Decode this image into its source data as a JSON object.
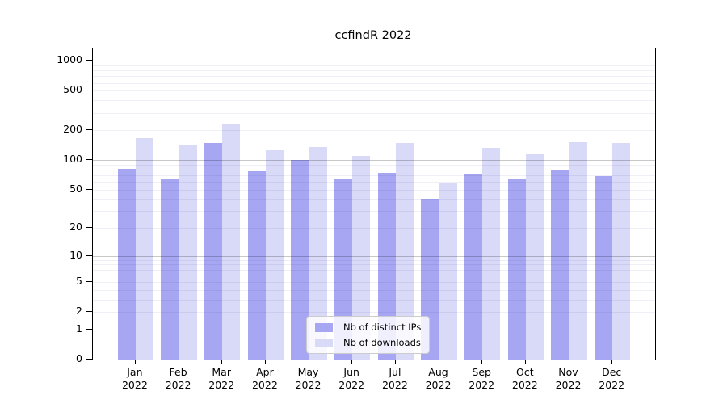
{
  "title": "ccfindR 2022",
  "chart_data": {
    "type": "bar",
    "title": "ccfindR 2022",
    "categories": [
      "Jan 2022",
      "Feb 2022",
      "Mar 2022",
      "Apr 2022",
      "May 2022",
      "Jun 2022",
      "Jul 2022",
      "Aug 2022",
      "Sep 2022",
      "Oct 2022",
      "Nov 2022",
      "Dec 2022"
    ],
    "x_tick_line1": [
      "Jan",
      "Feb",
      "Mar",
      "Apr",
      "May",
      "Jun",
      "Jul",
      "Aug",
      "Sep",
      "Oct",
      "Nov",
      "Dec"
    ],
    "x_tick_line2": [
      "2022",
      "2022",
      "2022",
      "2022",
      "2022",
      "2022",
      "2022",
      "2022",
      "2022",
      "2022",
      "2022",
      "2022"
    ],
    "series": [
      {
        "name": "Nb of distinct IPs",
        "color": "#a6a6f2",
        "values": [
          82,
          65,
          148,
          77,
          100,
          65,
          74,
          40,
          72,
          64,
          79,
          68
        ]
      },
      {
        "name": "Nb of downloads",
        "color": "#d9d9f8",
        "values": [
          165,
          142,
          228,
          126,
          135,
          111,
          150,
          58,
          134,
          115,
          151,
          150
        ]
      }
    ],
    "y_ticks": [
      0,
      1,
      2,
      5,
      10,
      20,
      50,
      100,
      200,
      500,
      1000
    ],
    "y_scale": "log10(value+1)",
    "ylim": [
      0,
      1330
    ],
    "xlabel": "",
    "ylabel": "",
    "grid": true,
    "legend_position": "lower center"
  },
  "colors": {
    "bar_distinct_ips": "#a6a6f2",
    "bar_downloads": "#d9d9f8",
    "grid_major": "#c8c8c8",
    "grid_minor": "#ededf3",
    "axis": "#000000",
    "legend_border": "#cccccc"
  }
}
